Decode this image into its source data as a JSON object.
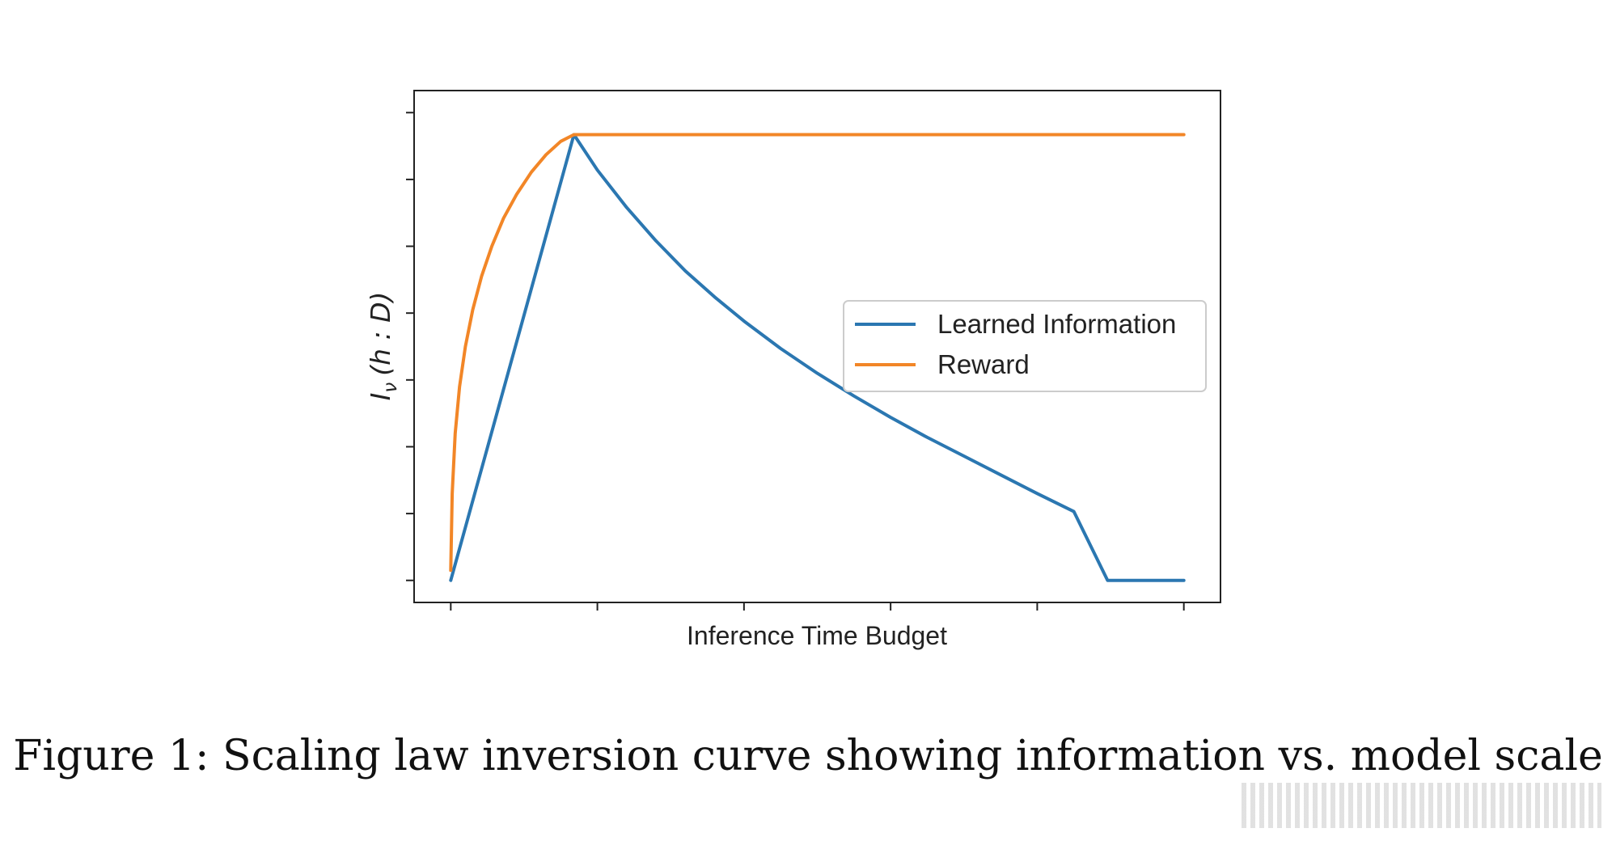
{
  "chart_data": {
    "type": "line",
    "title": "",
    "xlabel": "Inference Time Budget",
    "ylabel": "I_ν (h : D)",
    "ylabel_parts": {
      "main": "I",
      "sub": "ν",
      "args": "(h : D)"
    },
    "xlim": [
      -0.25,
      5.25
    ],
    "ylim": [
      -0.33,
      7.33
    ],
    "xticks": [
      0,
      1,
      2,
      3,
      4,
      5
    ],
    "yticks": [
      0,
      1,
      2,
      3,
      4,
      5,
      6,
      7
    ],
    "tick_labels_shown": false,
    "grid": false,
    "legend_position": "center-right",
    "series": [
      {
        "name": "Learned Information",
        "color": "#2b77b1",
        "x": [
          0,
          0.84,
          1.0,
          1.2,
          1.4,
          1.6,
          1.8,
          2.0,
          2.25,
          2.5,
          2.75,
          3.0,
          3.25,
          3.5,
          3.75,
          4.0,
          4.25,
          4.48,
          5.0
        ],
        "y": [
          0,
          6.67,
          6.14,
          5.58,
          5.08,
          4.63,
          4.24,
          3.88,
          3.47,
          3.1,
          2.76,
          2.44,
          2.14,
          1.86,
          1.58,
          1.3,
          1.03,
          0.0,
          0.0
        ]
      },
      {
        "name": "Reward",
        "color": "#f28627",
        "x": [
          0,
          0.01,
          0.03,
          0.06,
          0.1,
          0.15,
          0.21,
          0.28,
          0.36,
          0.45,
          0.55,
          0.65,
          0.75,
          0.84,
          1.5,
          2.0,
          3.0,
          4.0,
          5.0
        ],
        "y": [
          0.15,
          1.3,
          2.2,
          2.9,
          3.5,
          4.05,
          4.55,
          5.0,
          5.42,
          5.78,
          6.11,
          6.37,
          6.57,
          6.67,
          6.67,
          6.67,
          6.67,
          6.67,
          6.67
        ]
      }
    ]
  },
  "caption": "Figure 1: Scaling law inversion curve showing information vs. model scale",
  "colors": {
    "blue": "#2b77b1",
    "orange": "#f28627",
    "axis": "#222222"
  }
}
